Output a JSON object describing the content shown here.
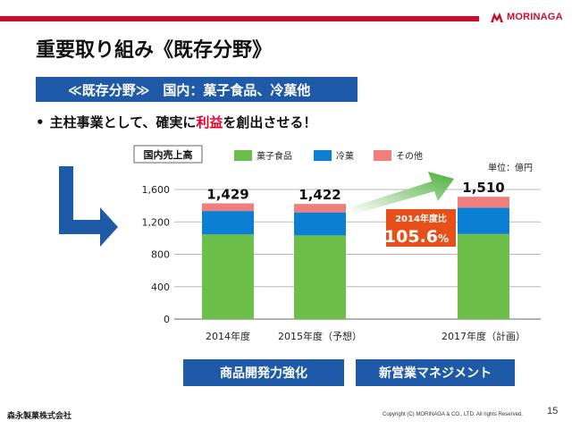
{
  "brand": {
    "name": "MORINAGA"
  },
  "slide": {
    "title": "重要取り組み《既存分野》",
    "section": "≪既存分野≫　国内：菓子食品、冷菓他",
    "bullet_prefix": "主柱事業として、確実に",
    "bullet_highlight": "利益",
    "bullet_suffix": "を創出させる！"
  },
  "colors": {
    "snack_food": "#6cc04a",
    "frozen": "#0a7fd4",
    "other": "#ef7f7c",
    "brand_red": "#c8102e",
    "navy": "#1f5aa8",
    "arrow_blue": "#1f5aa8",
    "badge": "#e8501a"
  },
  "chart_data": {
    "type": "bar",
    "stacked": true,
    "title": "国内売上高",
    "unit_label": "単位：億円",
    "categories": [
      "2014年度",
      "2015年度（予想）",
      "2017年度（計画）"
    ],
    "series": [
      {
        "name": "菓子食品",
        "values": [
          1045,
          1033,
          1050
        ]
      },
      {
        "name": "冷菓",
        "values": [
          289,
          284,
          325
        ]
      },
      {
        "name": "その他",
        "values": [
          95,
          105,
          135
        ]
      }
    ],
    "totals": [
      1429,
      1422,
      1510
    ],
    "total_labels": [
      "1,429",
      "1,422",
      "1,510"
    ],
    "y_ticks": [
      0,
      400,
      800,
      1200,
      1600
    ],
    "y_tick_labels": [
      "0",
      "400",
      "800",
      "1,200",
      "1,600"
    ],
    "ylim": [
      0,
      1600
    ],
    "grid": true,
    "legend_position": "top",
    "annotation": {
      "line1": "2014年度比",
      "line2": "105.6",
      "unit": "%"
    }
  },
  "panels": {
    "left": "商品開発力強化",
    "right": "新営業マネジメント"
  },
  "footer": {
    "company": "森永製菓株式会社",
    "copyright": "Copyright (C) MORINAGA & CO., LTD. All rights Reserved.",
    "page": "15"
  }
}
